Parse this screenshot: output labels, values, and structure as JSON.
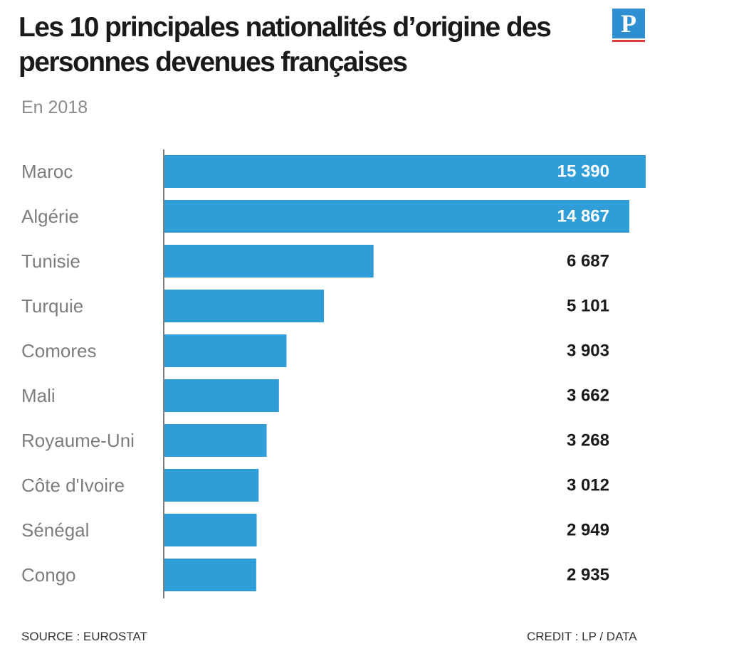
{
  "header": {
    "title": "Les 10 principales nationalités d’origine des personnes devenues françaises",
    "subtitle": "En 2018",
    "logo_letter": "P"
  },
  "footer": {
    "source": "SOURCE : EUROSTAT",
    "credit": "CREDIT : LP / DATA"
  },
  "colors": {
    "bar": "#2f9ed8",
    "axis": "#555555",
    "logo": "#2f8fd3",
    "logo_accent": "#e03b3b"
  },
  "chart_data": {
    "type": "bar",
    "orientation": "horizontal",
    "title": "Les 10 principales nationalités d’origine des personnes devenues françaises",
    "subtitle": "En 2018",
    "categories": [
      "Maroc",
      "Algérie",
      "Tunisie",
      "Turquie",
      "Comores",
      "Mali",
      "Royaume-Uni",
      "Côte d'Ivoire",
      "Sénégal",
      "Congo"
    ],
    "values": [
      15390,
      14867,
      6687,
      5101,
      3903,
      3662,
      3268,
      3012,
      2949,
      2935
    ],
    "value_labels": [
      "15 390",
      "14 867",
      "6 687",
      "5 101",
      "3 903",
      "3 662",
      "3 268",
      "3 012",
      "2 949",
      "2 935"
    ],
    "xlim": [
      0,
      15390
    ],
    "grid": false,
    "legend": "none"
  }
}
